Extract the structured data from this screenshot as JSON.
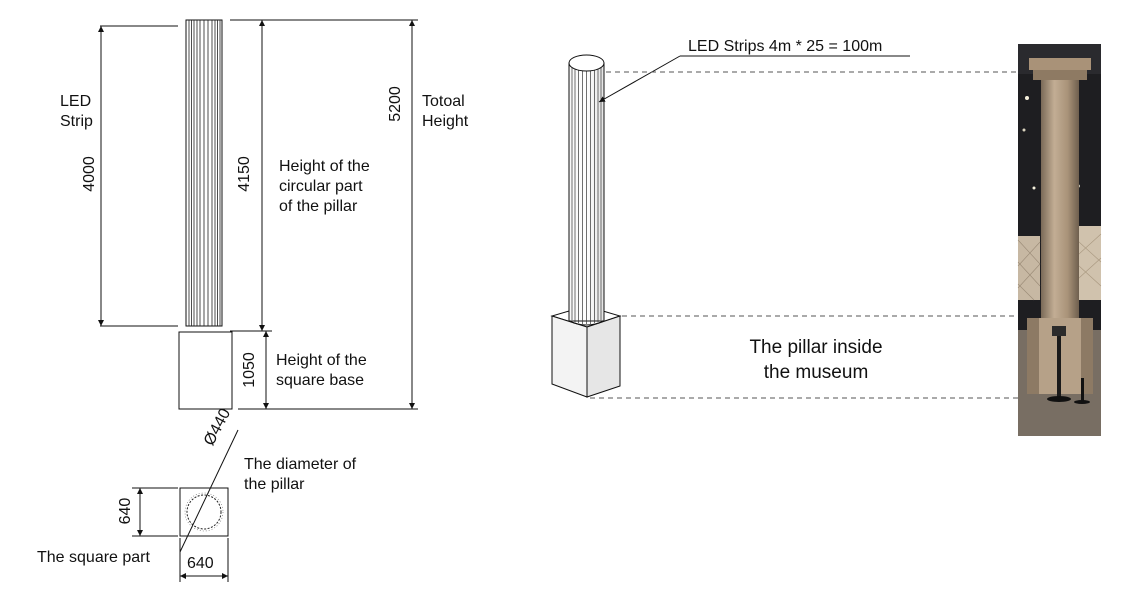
{
  "labels": {
    "led_strip": "LED\nStrip",
    "height_circular": "Height of the\ncircular part\nof the pillar",
    "total_height": "Totoal\nHeight",
    "height_base": "Height of the\nsquare base",
    "diameter_desc": "The diameter of\nthe pillar",
    "square_part": "The square part",
    "led_callout": "LED Strips 4m * 25 = 100m",
    "museum_caption": "The pillar inside\nthe museum"
  },
  "dimensions": {
    "led_length": "4000",
    "circular_height": "4150",
    "total_height": "5200",
    "base_height": "1050",
    "diameter": "Ø440",
    "square_side_vertical": "640",
    "square_side_horizontal": "640"
  },
  "colors": {
    "line": "#111111",
    "guide": "#555555",
    "photo_dark": "#1d1d1f",
    "pillar_stone": "#b09a82"
  }
}
